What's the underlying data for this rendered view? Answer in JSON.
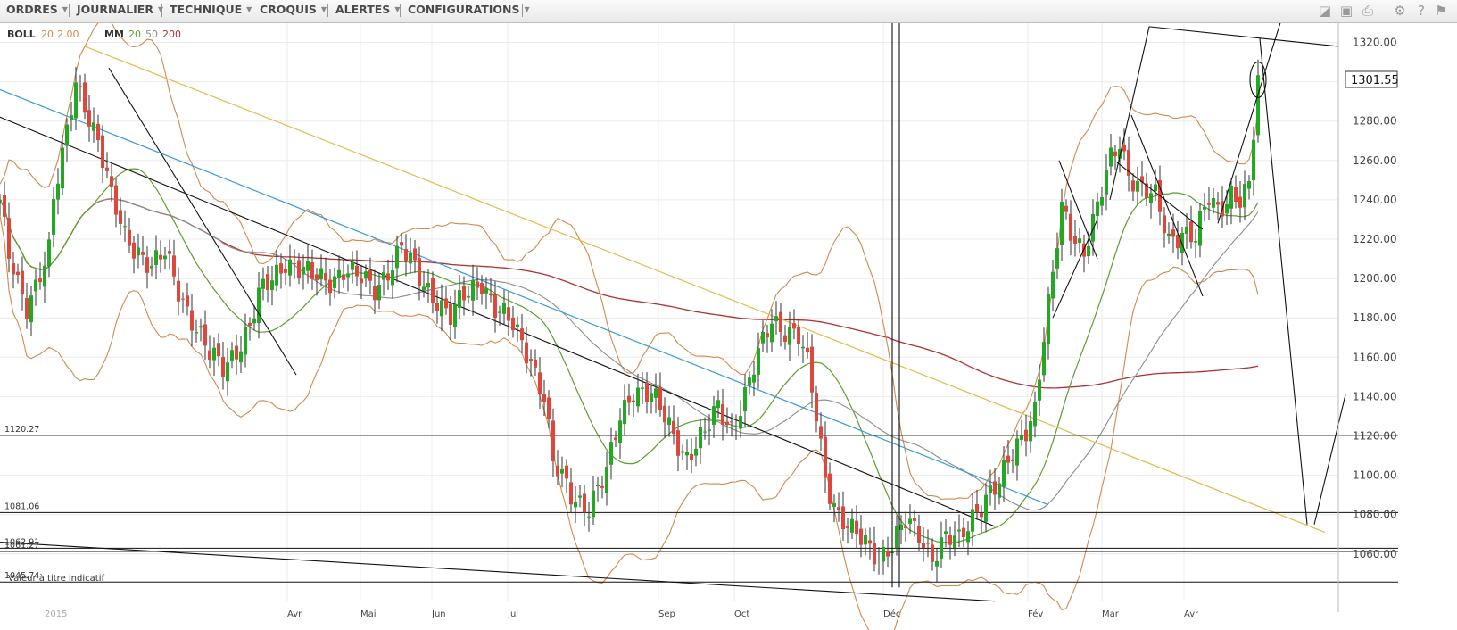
{
  "menu": {
    "items": [
      {
        "label": "ORDRES",
        "name": "menu-ordres"
      },
      {
        "label": "JOURNALIER",
        "name": "menu-journalier"
      },
      {
        "label": "TECHNIQUE",
        "name": "menu-technique"
      },
      {
        "label": "CROQUIS",
        "name": "menu-croquis"
      },
      {
        "label": "ALERTES",
        "name": "menu-alertes"
      },
      {
        "label": "CONFIGURATIONS",
        "name": "menu-configurations"
      }
    ],
    "tools": [
      {
        "icon": "layers-icon",
        "glyph": "◪"
      },
      {
        "icon": "image-icon",
        "glyph": "▣"
      },
      {
        "icon": "print-icon",
        "glyph": "⎙"
      },
      {
        "icon": "gear-icon",
        "glyph": "⚙"
      },
      {
        "icon": "help-icon",
        "glyph": "?"
      },
      {
        "icon": "pin-icon",
        "glyph": "⚑"
      }
    ]
  },
  "indicators": {
    "boll_label": "BOLL",
    "boll_period": "20",
    "boll_dev": "2.00",
    "ma_label": "MM",
    "ma1": "20",
    "ma2": "50",
    "ma3": "200"
  },
  "footer_note": "Valeur à titre indicatif",
  "current_price": "1301.55",
  "colors": {
    "up": "#22a822",
    "down": "#e0463a",
    "ma20": "#5aa02c",
    "ma50": "#8c8c8c",
    "ma200": "#b03030",
    "boll": "#d2894b",
    "gold_line": "#e6b94a",
    "blue_line": "#3a9ad9"
  },
  "chart_data": {
    "type": "candlestick",
    "y_min": 1040,
    "y_max": 1330,
    "y_ticks": [
      "1320.00",
      "1300.00",
      "1280.00",
      "1260.00",
      "1240.00",
      "1220.00",
      "1200.00",
      "1180.00",
      "1160.00",
      "1140.00",
      "1120.00",
      "1100.00",
      "1080.00",
      "1060.00"
    ],
    "x_labels": [
      "2015",
      "Avr",
      "Mai",
      "Jun",
      "Jul",
      "Sep",
      "Oct",
      "Déc",
      "Fév",
      "Mar",
      "Avr"
    ],
    "horizontal_levels": [
      {
        "label": "1120.27",
        "value": 1120.27
      },
      {
        "label": "1081.06",
        "value": 1081.06
      },
      {
        "label": "1062.91",
        "value": 1062.91
      },
      {
        "label": "1061.27",
        "value": 1061.27
      },
      {
        "label": "1045.74",
        "value": 1045.74
      }
    ],
    "anchors": [
      [
        0,
        1240
      ],
      [
        10,
        1210
      ],
      [
        20,
        1195
      ],
      [
        30,
        1185
      ],
      [
        45,
        1205
      ],
      [
        55,
        1215
      ],
      [
        60,
        1240
      ],
      [
        70,
        1260
      ],
      [
        85,
        1300
      ],
      [
        95,
        1290
      ],
      [
        110,
        1270
      ],
      [
        125,
        1240
      ],
      [
        140,
        1222
      ],
      [
        155,
        1215
      ],
      [
        170,
        1205
      ],
      [
        185,
        1212
      ],
      [
        200,
        1195
      ],
      [
        210,
        1185
      ],
      [
        225,
        1170
      ],
      [
        235,
        1160
      ],
      [
        250,
        1155
      ],
      [
        265,
        1165
      ],
      [
        280,
        1175
      ],
      [
        290,
        1190
      ],
      [
        305,
        1200
      ],
      [
        320,
        1210
      ],
      [
        335,
        1205
      ],
      [
        350,
        1200
      ],
      [
        370,
        1200
      ],
      [
        385,
        1205
      ],
      [
        400,
        1200
      ],
      [
        420,
        1195
      ],
      [
        435,
        1205
      ],
      [
        450,
        1215
      ],
      [
        470,
        1200
      ],
      [
        490,
        1190
      ],
      [
        505,
        1180
      ],
      [
        520,
        1190
      ],
      [
        540,
        1200
      ],
      [
        555,
        1185
      ],
      [
        575,
        1175
      ],
      [
        595,
        1160
      ],
      [
        610,
        1140
      ],
      [
        620,
        1105
      ],
      [
        640,
        1090
      ],
      [
        660,
        1085
      ],
      [
        680,
        1100
      ],
      [
        695,
        1130
      ],
      [
        710,
        1145
      ],
      [
        730,
        1140
      ],
      [
        750,
        1125
      ],
      [
        770,
        1110
      ],
      [
        790,
        1120
      ],
      [
        805,
        1135
      ],
      [
        820,
        1125
      ],
      [
        835,
        1140
      ],
      [
        850,
        1160
      ],
      [
        865,
        1180
      ],
      [
        880,
        1175
      ],
      [
        895,
        1170
      ],
      [
        905,
        1155
      ],
      [
        915,
        1130
      ],
      [
        925,
        1100
      ],
      [
        940,
        1080
      ],
      [
        955,
        1070
      ],
      [
        970,
        1065
      ],
      [
        985,
        1060
      ],
      [
        1000,
        1065
      ],
      [
        1015,
        1075
      ],
      [
        1030,
        1070
      ],
      [
        1045,
        1060
      ],
      [
        1060,
        1068
      ],
      [
        1075,
        1065
      ],
      [
        1090,
        1080
      ],
      [
        1105,
        1090
      ],
      [
        1120,
        1095
      ],
      [
        1135,
        1110
      ],
      [
        1150,
        1125
      ],
      [
        1160,
        1135
      ],
      [
        1170,
        1170
      ],
      [
        1180,
        1200
      ],
      [
        1190,
        1235
      ],
      [
        1200,
        1225
      ],
      [
        1215,
        1215
      ],
      [
        1230,
        1235
      ],
      [
        1245,
        1260
      ],
      [
        1255,
        1270
      ],
      [
        1265,
        1255
      ],
      [
        1280,
        1245
      ],
      [
        1295,
        1240
      ],
      [
        1310,
        1220
      ],
      [
        1325,
        1225
      ],
      [
        1340,
        1220
      ],
      [
        1355,
        1240
      ],
      [
        1365,
        1235
      ],
      [
        1380,
        1245
      ],
      [
        1390,
        1240
      ],
      [
        1400,
        1245
      ],
      [
        1410,
        1300
      ]
    ]
  }
}
